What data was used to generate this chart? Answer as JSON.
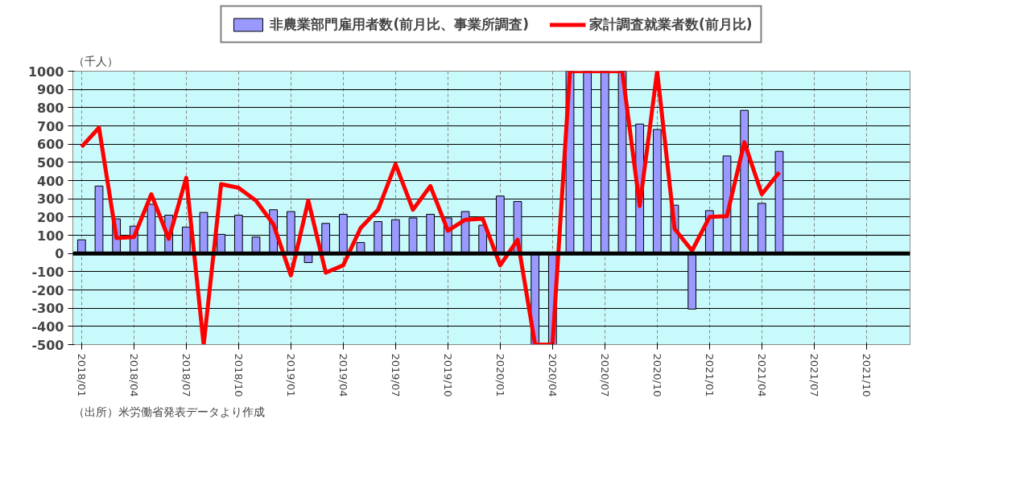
{
  "chart_data": {
    "type": "bar",
    "ylabel": "（千人）",
    "categories": [
      "2018/01",
      null,
      null,
      "2018/04",
      null,
      null,
      "2018/07",
      null,
      null,
      "2018/10",
      null,
      null,
      "2019/01",
      null,
      null,
      "2019/04",
      null,
      null,
      "2019/07",
      null,
      null,
      "2019/10",
      null,
      null,
      "2020/01",
      null,
      null,
      "2020/04",
      null,
      null,
      "2020/07",
      null,
      null,
      "2020/10",
      null,
      null,
      "2021/01",
      null,
      null,
      "2021/04",
      null,
      null,
      "2021/07",
      null,
      null,
      "2021/10",
      null,
      null
    ],
    "series": [
      {
        "name": "非農業部門雇用者数(前月比、事業所調査)",
        "color": "#9999ff",
        "values": [
          75,
          370,
          190,
          150,
          270,
          210,
          145,
          225,
          105,
          210,
          90,
          240,
          230,
          -50,
          165,
          215,
          60,
          175,
          185,
          195,
          215,
          195,
          230,
          155,
          315,
          285,
          -500,
          -500,
          1000,
          1000,
          1000,
          1000,
          710,
          680,
          265,
          -305,
          235,
          535,
          785,
          275,
          560,
          null,
          null,
          null,
          null,
          null,
          null,
          null
        ]
      },
      {
        "name": "家計調査就業者数(前月比)",
        "type": "line",
        "color": "#ff0000",
        "values": [
          585,
          690,
          85,
          90,
          325,
          80,
          415,
          -500,
          380,
          360,
          290,
          160,
          -120,
          290,
          -105,
          -65,
          140,
          240,
          490,
          240,
          370,
          125,
          185,
          190,
          -65,
          75,
          -500,
          -500,
          1000,
          1000,
          1000,
          1000,
          260,
          1000,
          135,
          15,
          200,
          205,
          610,
          325,
          445,
          null,
          null,
          null,
          null,
          null,
          null,
          null
        ]
      }
    ],
    "ylim": [
      -500,
      1000
    ],
    "yticks": [
      -500,
      -400,
      -300,
      -200,
      -100,
      0,
      100,
      200,
      300,
      400,
      500,
      600,
      700,
      800,
      900,
      1000
    ],
    "grid": true,
    "legend": "top",
    "annotations": [
      "（出所）米労働省発表データより作成"
    ]
  }
}
